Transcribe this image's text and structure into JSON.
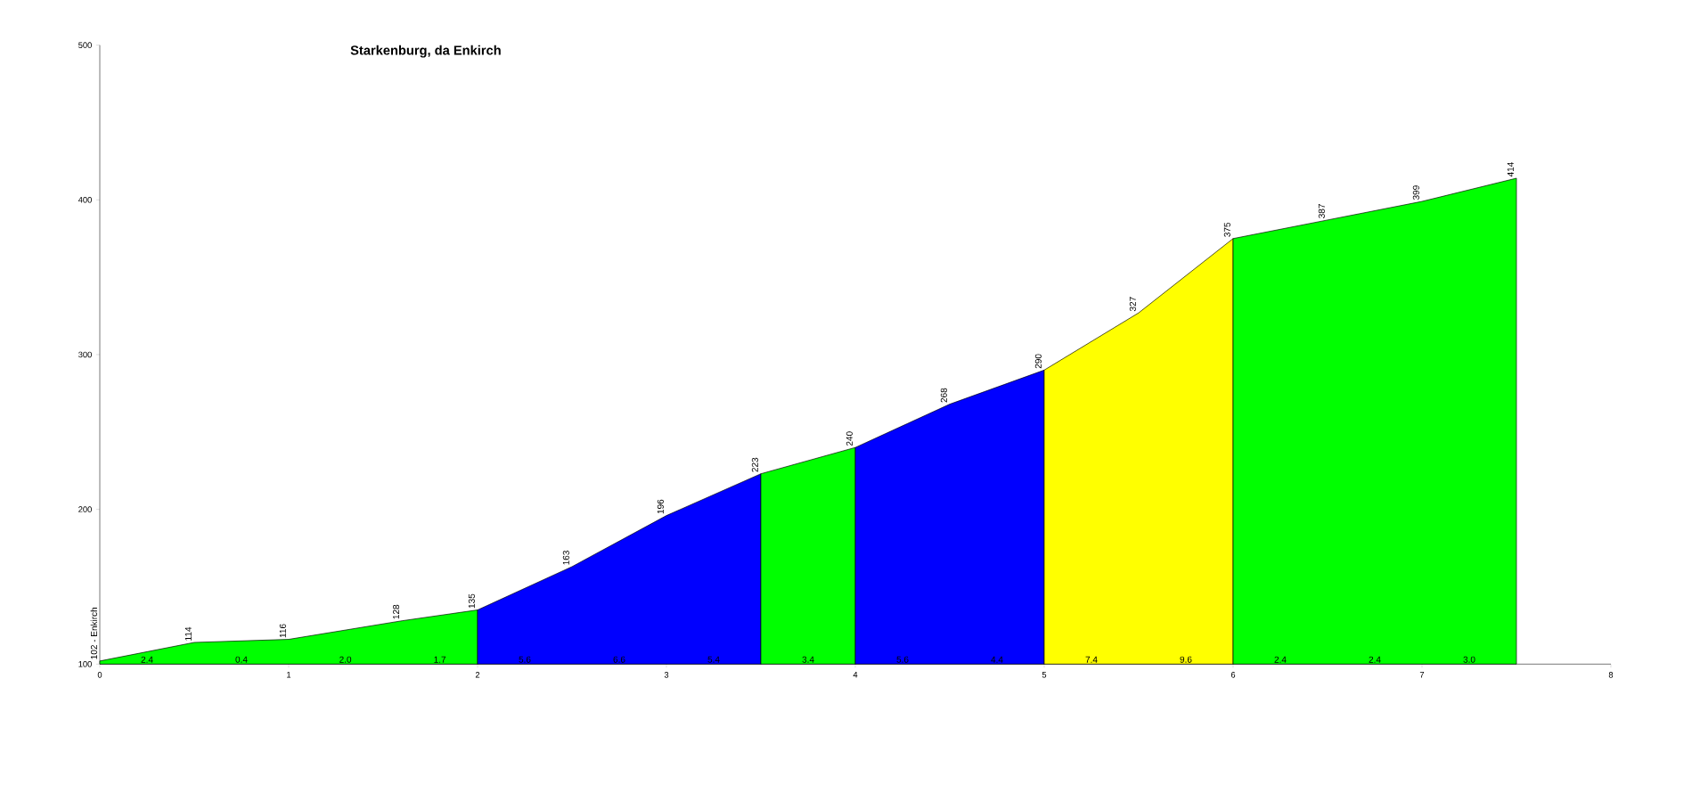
{
  "chart_data": {
    "type": "area",
    "title": "Starkenburg, da Enkirch",
    "xlim": [
      0,
      8
    ],
    "xticks": [
      0,
      1,
      2,
      3,
      4,
      5,
      6,
      7,
      8
    ],
    "ylim": [
      100,
      500
    ],
    "yticks": [
      100,
      200,
      300,
      400,
      500
    ],
    "series": [
      {
        "color": "#00ff00",
        "x": [
          0,
          0.5,
          1,
          1.6,
          2
        ],
        "values": [
          102,
          114,
          116,
          128,
          135
        ],
        "value_labels": [
          "102 - Enkirch",
          "114",
          "116",
          "128",
          "135"
        ]
      },
      {
        "color": "#0000ff",
        "x": [
          2,
          2.5,
          3,
          3.5
        ],
        "values": [
          135,
          163,
          196,
          223
        ],
        "value_labels": [
          null,
          "163",
          "196",
          "223"
        ]
      },
      {
        "color": "#00ff00",
        "x": [
          3.5,
          4
        ],
        "values": [
          223,
          240
        ],
        "value_labels": [
          null,
          "240"
        ]
      },
      {
        "color": "#0000ff",
        "x": [
          4,
          4.5,
          5
        ],
        "values": [
          240,
          268,
          290
        ],
        "value_labels": [
          null,
          "268",
          "290"
        ]
      },
      {
        "color": "#ffff00",
        "x": [
          5,
          5.5,
          6
        ],
        "values": [
          290,
          327,
          375
        ],
        "value_labels": [
          null,
          "327",
          "375"
        ]
      },
      {
        "color": "#00ff00",
        "x": [
          6,
          6.5,
          7,
          7.5
        ],
        "values": [
          375,
          387,
          399,
          414
        ],
        "value_labels": [
          null,
          "387",
          "399",
          "414"
        ]
      }
    ],
    "annotations": [
      {
        "text": "2.4",
        "x": 0.25,
        "y": 100
      },
      {
        "text": "0.4",
        "x": 0.75,
        "y": 100
      },
      {
        "text": "2.0",
        "x": 1.3,
        "y": 100
      },
      {
        "text": "1.7",
        "x": 1.8,
        "y": 100
      },
      {
        "text": "5.6",
        "x": 2.25,
        "y": 100
      },
      {
        "text": "6.6",
        "x": 2.75,
        "y": 100
      },
      {
        "text": "5.4",
        "x": 3.25,
        "y": 100
      },
      {
        "text": "3.4",
        "x": 3.75,
        "y": 100
      },
      {
        "text": "5.6",
        "x": 4.25,
        "y": 100
      },
      {
        "text": "4.4",
        "x": 4.75,
        "y": 100
      },
      {
        "text": "7.4",
        "x": 5.25,
        "y": 100
      },
      {
        "text": "9.6",
        "x": 5.75,
        "y": 100
      },
      {
        "text": "2.4",
        "x": 6.25,
        "y": 100
      },
      {
        "text": "2.4",
        "x": 6.75,
        "y": 100
      },
      {
        "text": "3.0",
        "x": 7.25,
        "y": 100
      }
    ]
  }
}
